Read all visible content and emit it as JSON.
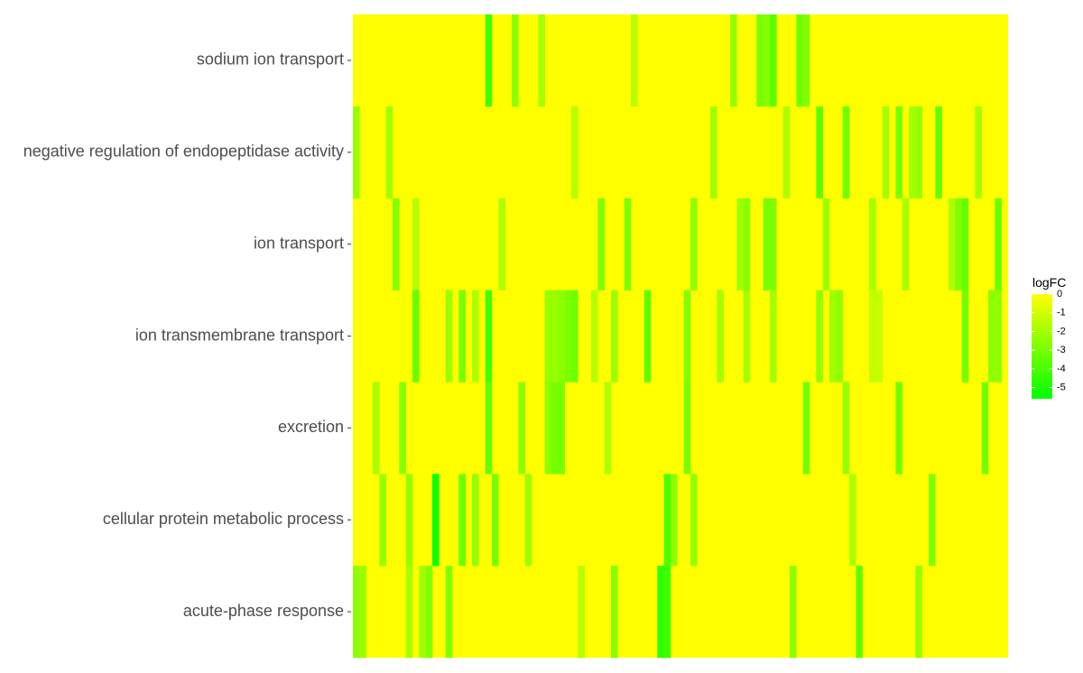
{
  "chart_data": {
    "type": "heatmap",
    "rows": [
      "sodium ion transport",
      "negative regulation of endopeptidase activity",
      "ion transport",
      "ion transmembrane transport",
      "excretion",
      "cellular protein metabolic process",
      "acute-phase response"
    ],
    "n_columns": 99,
    "cells": [
      [
        0,
        20,
        -4.2
      ],
      [
        0,
        24,
        -2.5
      ],
      [
        0,
        28,
        -2.0
      ],
      [
        0,
        42,
        -1.6
      ],
      [
        0,
        57,
        -2.4
      ],
      [
        0,
        61,
        -3.0
      ],
      [
        0,
        62,
        -2.7
      ],
      [
        0,
        63,
        -3.6
      ],
      [
        0,
        67,
        -3.2
      ],
      [
        0,
        68,
        -2.8
      ],
      [
        1,
        0,
        -2.3
      ],
      [
        1,
        5,
        -2.1
      ],
      [
        1,
        33,
        -1.6
      ],
      [
        1,
        54,
        -2.1
      ],
      [
        1,
        65,
        -1.8
      ],
      [
        1,
        70,
        -3.6
      ],
      [
        1,
        74,
        -3.2
      ],
      [
        1,
        80,
        -2.0
      ],
      [
        1,
        82,
        -3.0
      ],
      [
        1,
        84,
        -2.0
      ],
      [
        1,
        85,
        -2.3
      ],
      [
        1,
        88,
        -3.4
      ],
      [
        1,
        94,
        -2.0
      ],
      [
        2,
        6,
        -2.7
      ],
      [
        2,
        9,
        -1.6
      ],
      [
        2,
        22,
        -1.8
      ],
      [
        2,
        37,
        -2.8
      ],
      [
        2,
        41,
        -2.9
      ],
      [
        2,
        51,
        -2.5
      ],
      [
        2,
        58,
        -2.1
      ],
      [
        2,
        59,
        -2.6
      ],
      [
        2,
        62,
        -3.0
      ],
      [
        2,
        63,
        -2.8
      ],
      [
        2,
        71,
        -2.2
      ],
      [
        2,
        78,
        -2.0
      ],
      [
        2,
        83,
        -2.0
      ],
      [
        2,
        90,
        -1.8
      ],
      [
        2,
        91,
        -2.8
      ],
      [
        2,
        92,
        -3.3
      ],
      [
        2,
        97,
        -3.3
      ],
      [
        3,
        9,
        -3.4
      ],
      [
        3,
        14,
        -2.2
      ],
      [
        3,
        16,
        -3.0
      ],
      [
        3,
        18,
        -1.8
      ],
      [
        3,
        20,
        -4.2
      ],
      [
        3,
        29,
        -2.3
      ],
      [
        3,
        30,
        -2.3
      ],
      [
        3,
        31,
        -2.5
      ],
      [
        3,
        32,
        -2.9
      ],
      [
        3,
        33,
        -3.2
      ],
      [
        3,
        36,
        -1.6
      ],
      [
        3,
        39,
        -2.2
      ],
      [
        3,
        44,
        -3.6
      ],
      [
        3,
        50,
        -2.8
      ],
      [
        3,
        55,
        -2.0
      ],
      [
        3,
        59,
        -2.0
      ],
      [
        3,
        63,
        -2.0
      ],
      [
        3,
        70,
        -2.4
      ],
      [
        3,
        72,
        -2.1
      ],
      [
        3,
        73,
        -2.4
      ],
      [
        3,
        78,
        -1.3
      ],
      [
        3,
        79,
        -1.3
      ],
      [
        3,
        92,
        -3.1
      ],
      [
        3,
        96,
        -2.5
      ],
      [
        3,
        97,
        -2.5
      ],
      [
        4,
        3,
        -1.9
      ],
      [
        4,
        7,
        -2.6
      ],
      [
        4,
        20,
        -3.4
      ],
      [
        4,
        25,
        -2.6
      ],
      [
        4,
        29,
        -2.6
      ],
      [
        4,
        30,
        -3.0
      ],
      [
        4,
        31,
        -3.0
      ],
      [
        4,
        38,
        -1.8
      ],
      [
        4,
        50,
        -3.0
      ],
      [
        4,
        68,
        -3.1
      ],
      [
        4,
        74,
        -2.3
      ],
      [
        4,
        82,
        -3.1
      ],
      [
        4,
        95,
        -3.1
      ],
      [
        5,
        4,
        -2.3
      ],
      [
        5,
        8,
        -2.4
      ],
      [
        5,
        12,
        -5.3
      ],
      [
        5,
        16,
        -3.3
      ],
      [
        5,
        18,
        -2.3
      ],
      [
        5,
        21,
        -3.0
      ],
      [
        5,
        26,
        -2.2
      ],
      [
        5,
        47,
        -4.0
      ],
      [
        5,
        48,
        -2.5
      ],
      [
        5,
        51,
        -2.3
      ],
      [
        5,
        75,
        -1.8
      ],
      [
        5,
        87,
        -2.8
      ],
      [
        6,
        0,
        -2.5
      ],
      [
        6,
        1,
        -2.2
      ],
      [
        6,
        8,
        -2.0
      ],
      [
        6,
        10,
        -2.1
      ],
      [
        6,
        11,
        -2.7
      ],
      [
        6,
        14,
        -2.8
      ],
      [
        6,
        34,
        -1.6
      ],
      [
        6,
        39,
        -2.6
      ],
      [
        6,
        46,
        -4.6
      ],
      [
        6,
        47,
        -4.3
      ],
      [
        6,
        66,
        -2.5
      ],
      [
        6,
        76,
        -3.5
      ],
      [
        6,
        85,
        -2.3
      ]
    ],
    "legend": {
      "title": "logFC",
      "ticks": [
        0,
        -1,
        -2,
        -3,
        -4,
        -5
      ],
      "min": -5.6,
      "max": 0,
      "colors": {
        "high": "#ffff00",
        "low": "#00ff00"
      }
    }
  }
}
